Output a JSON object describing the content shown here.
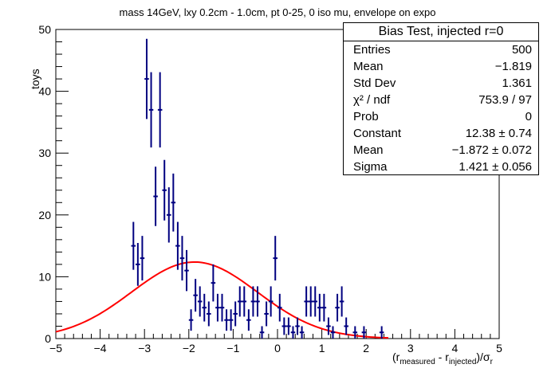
{
  "page": {
    "title": "mass 14GeV, lxy 0.2cm - 1.0cm, pt 0-25, 0 iso mu, envelope on expo"
  },
  "stats_box": {
    "title": "Bias Test, injected r=0",
    "rows": [
      {
        "label": "Entries",
        "value": "500"
      },
      {
        "label": "Mean",
        "value": "−1.819"
      },
      {
        "label": "Std Dev",
        "value": "1.361"
      },
      {
        "label": "χ² / ndf",
        "value": "753.9 / 97"
      },
      {
        "label": "Prob",
        "value": "0"
      },
      {
        "label": "Constant",
        "value": "12.38 ± 0.74"
      },
      {
        "label": "Mean",
        "value": "−1.872 ± 0.072"
      },
      {
        "label": "Sigma",
        "value": "1.421 ± 0.056"
      }
    ]
  },
  "chart_data": {
    "type": "scatter",
    "title": "mass 14GeV, lxy 0.2cm - 1.0cm, pt 0-25, 0 iso mu, envelope on expo",
    "ylabel": "toys",
    "xlabel_parts": {
      "open": "(r",
      "sub1": "measured",
      "mid": " - r",
      "sub2": "injected",
      "close": ")/σ",
      "sub3": "r"
    },
    "xlim": [
      -5,
      5
    ],
    "ylim": [
      0,
      50
    ],
    "xticks": [
      "−5",
      "−4",
      "−3",
      "−2",
      "−1",
      "0",
      "1",
      "2",
      "3",
      "4",
      "5"
    ],
    "yticks": [
      "0",
      "10",
      "20",
      "30",
      "40",
      "50"
    ],
    "bin_width": 0.1,
    "colors": {
      "points": "#000080",
      "fit": "#ff0000"
    },
    "points": [
      {
        "x": -3.25,
        "y": 15
      },
      {
        "x": -3.15,
        "y": 12
      },
      {
        "x": -3.05,
        "y": 13
      },
      {
        "x": -2.95,
        "y": 42
      },
      {
        "x": -2.85,
        "y": 37
      },
      {
        "x": -2.75,
        "y": 23
      },
      {
        "x": -2.65,
        "y": 37
      },
      {
        "x": -2.55,
        "y": 24
      },
      {
        "x": -2.45,
        "y": 20
      },
      {
        "x": -2.35,
        "y": 22
      },
      {
        "x": -2.25,
        "y": 15
      },
      {
        "x": -2.15,
        "y": 13
      },
      {
        "x": -2.05,
        "y": 11
      },
      {
        "x": -1.95,
        "y": 3
      },
      {
        "x": -1.85,
        "y": 7
      },
      {
        "x": -1.75,
        "y": 6
      },
      {
        "x": -1.65,
        "y": 5
      },
      {
        "x": -1.55,
        "y": 4
      },
      {
        "x": -1.45,
        "y": 9
      },
      {
        "x": -1.35,
        "y": 5
      },
      {
        "x": -1.25,
        "y": 5
      },
      {
        "x": -1.15,
        "y": 3
      },
      {
        "x": -1.05,
        "y": 3
      },
      {
        "x": -0.95,
        "y": 4
      },
      {
        "x": -0.85,
        "y": 6
      },
      {
        "x": -0.75,
        "y": 6
      },
      {
        "x": -0.65,
        "y": 3
      },
      {
        "x": -0.55,
        "y": 6
      },
      {
        "x": -0.45,
        "y": 6
      },
      {
        "x": -0.35,
        "y": 1
      },
      {
        "x": -0.25,
        "y": 4
      },
      {
        "x": -0.15,
        "y": 6
      },
      {
        "x": -0.05,
        "y": 13
      },
      {
        "x": 0.05,
        "y": 5
      },
      {
        "x": 0.15,
        "y": 2
      },
      {
        "x": 0.25,
        "y": 2
      },
      {
        "x": 0.35,
        "y": 1
      },
      {
        "x": 0.45,
        "y": 2
      },
      {
        "x": 0.55,
        "y": 1
      },
      {
        "x": 0.65,
        "y": 6
      },
      {
        "x": 0.75,
        "y": 6
      },
      {
        "x": 0.85,
        "y": 6
      },
      {
        "x": 0.95,
        "y": 5
      },
      {
        "x": 1.05,
        "y": 5
      },
      {
        "x": 1.15,
        "y": 2
      },
      {
        "x": 1.25,
        "y": 1
      },
      {
        "x": 1.35,
        "y": 5
      },
      {
        "x": 1.45,
        "y": 6
      },
      {
        "x": 1.55,
        "y": 2
      },
      {
        "x": 1.75,
        "y": 1
      },
      {
        "x": 1.95,
        "y": 1
      },
      {
        "x": 2.35,
        "y": 1
      }
    ],
    "fit": {
      "function": "gaus",
      "constant": 12.38,
      "mean": -1.872,
      "sigma": 1.421
    }
  }
}
